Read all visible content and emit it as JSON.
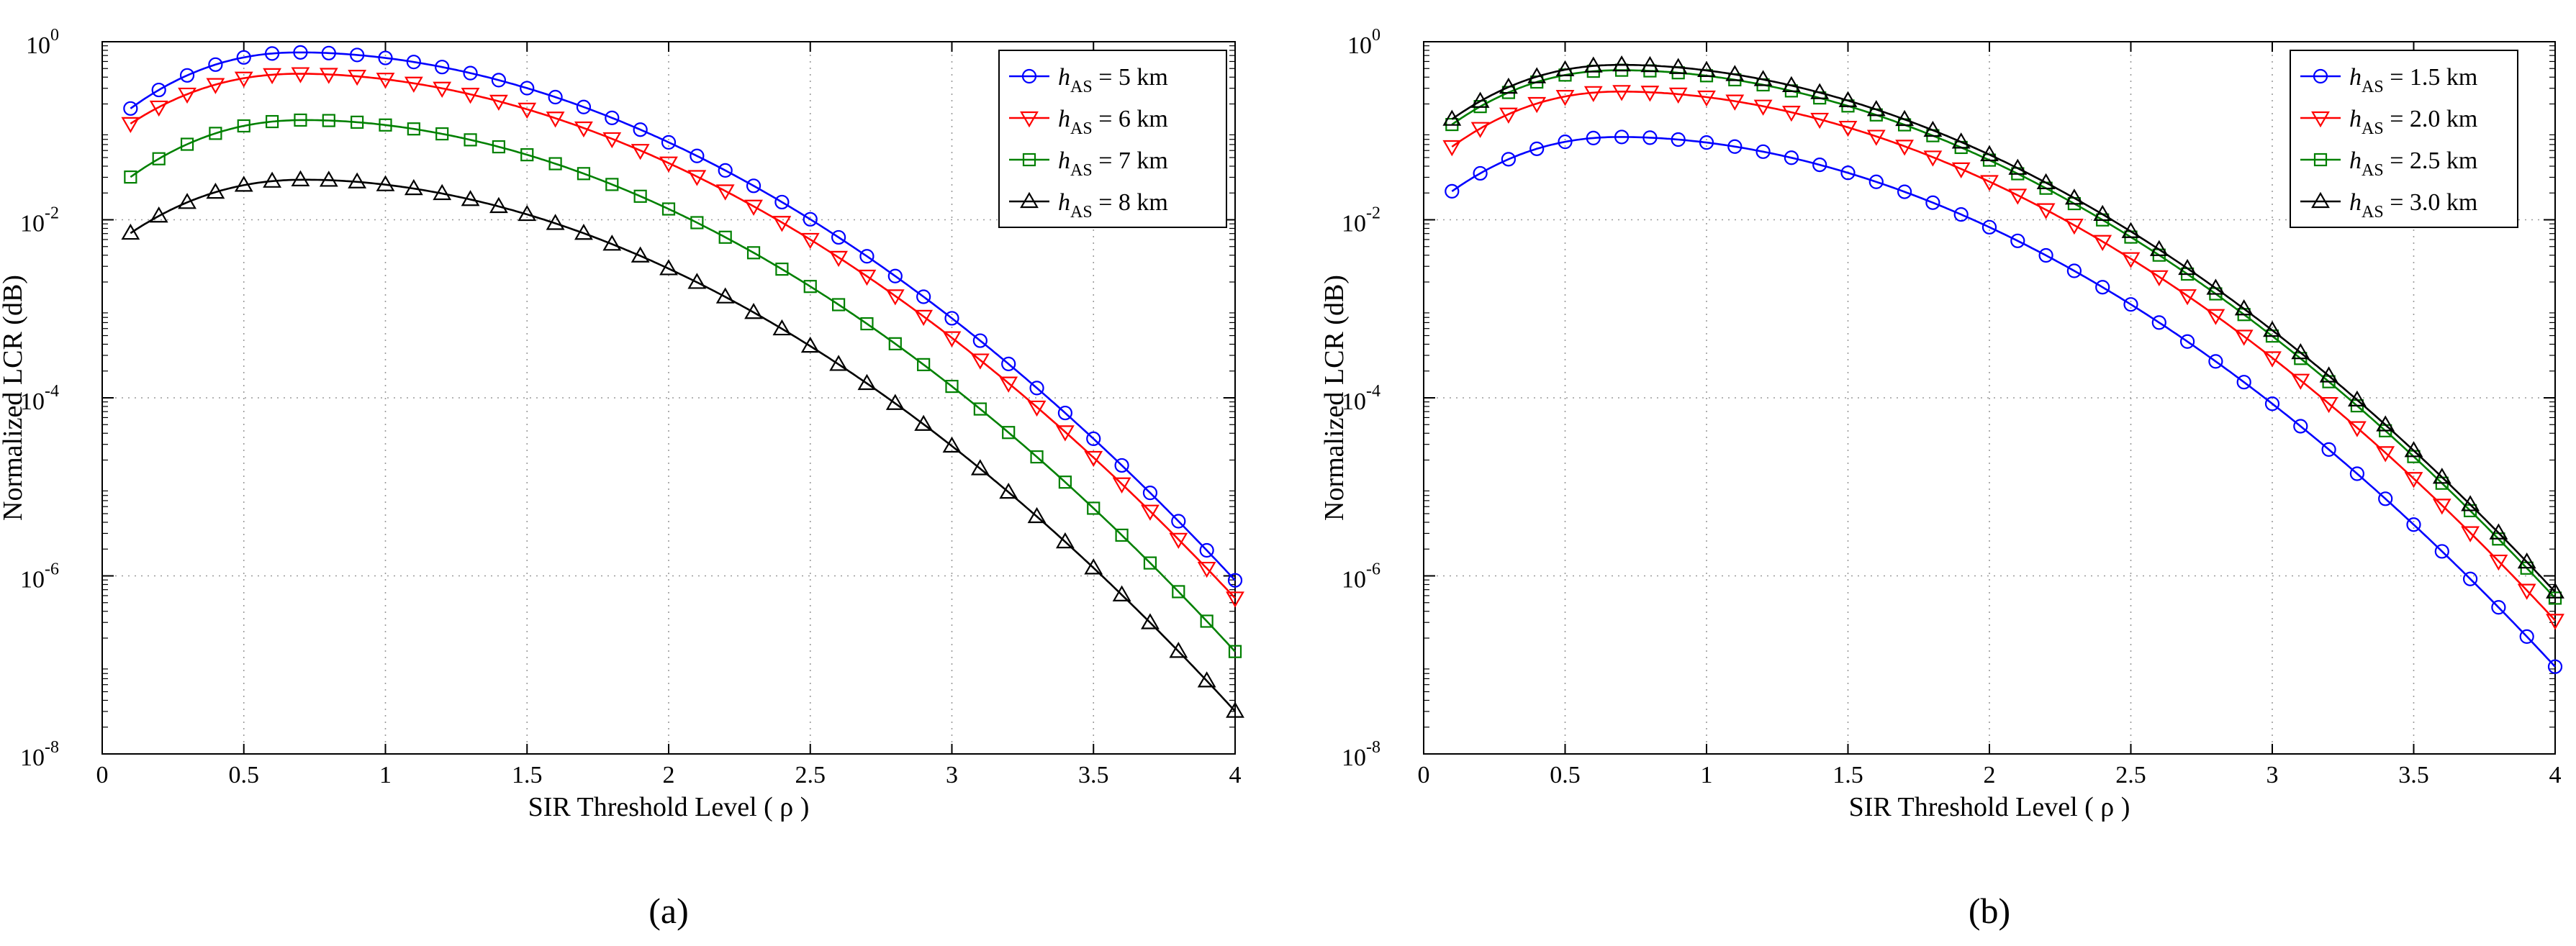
{
  "chart_data": [
    {
      "type": "line",
      "panel_label": "(a)",
      "xlabel": "SIR Threshold Level ( ρ )",
      "ylabel": "Normalized LCR (dB)",
      "xlim": [
        0,
        4
      ],
      "ylim_exponent": [
        -8,
        0
      ],
      "yscale": "log",
      "grid": true,
      "legend_position": "top-right",
      "x_ticks": [
        0,
        0.5,
        1,
        1.5,
        2,
        2.5,
        3,
        3.5,
        4
      ],
      "x_tick_labels": [
        "0",
        "0.5",
        "1",
        "1.5",
        "2",
        "2.5",
        "3",
        "3.5",
        "4"
      ],
      "y_ticks": [
        -8,
        -6,
        -4,
        -2,
        0
      ],
      "y_tick_base": "10",
      "y_tick_exponents": [
        "-8",
        "-6",
        "-4",
        "-2",
        "0"
      ],
      "series": [
        {
          "name": "h_AS = 5 km",
          "legend_var": "h",
          "legend_sub": "AS",
          "legend_rest": " = 5 km",
          "color": "#0000ff",
          "marker": "circle",
          "log_peak": -0.12,
          "log_end": -6.05,
          "peak_x": 0.7,
          "log_start": -0.75
        },
        {
          "name": "h_AS = 6 km",
          "legend_var": "h",
          "legend_sub": "AS",
          "legend_rest": " = 6 km",
          "color": "#ff0000",
          "marker": "triangle-down",
          "log_peak": -0.36,
          "log_end": -6.25,
          "peak_x": 0.7,
          "log_start": -0.92
        },
        {
          "name": "h_AS = 7 km",
          "legend_var": "h",
          "legend_sub": "AS",
          "legend_rest": " = 7 km",
          "color": "#008000",
          "marker": "square",
          "log_peak": -0.88,
          "log_end": -6.85,
          "peak_x": 0.72,
          "log_start": -1.52
        },
        {
          "name": "h_AS = 8 km",
          "legend_var": "h",
          "legend_sub": "AS",
          "legend_rest": " = 8 km",
          "color": "#000000",
          "marker": "triangle-up",
          "log_peak": -1.55,
          "log_end": -7.52,
          "peak_x": 0.72,
          "log_start": -2.15
        }
      ]
    },
    {
      "type": "line",
      "panel_label": "(b)",
      "xlabel": "SIR Threshold Level ( ρ )",
      "ylabel": "Normalized LCR (dB)",
      "xlim": [
        0,
        4
      ],
      "ylim_exponent": [
        -8,
        0
      ],
      "yscale": "log",
      "grid": true,
      "legend_position": "top-right",
      "x_ticks": [
        0,
        0.5,
        1,
        1.5,
        2,
        2.5,
        3,
        3.5,
        4
      ],
      "x_tick_labels": [
        "0",
        "0.5",
        "1",
        "1.5",
        "2",
        "2.5",
        "3",
        "3.5",
        "4"
      ],
      "y_ticks": [
        -8,
        -6,
        -4,
        -2,
        0
      ],
      "y_tick_base": "10",
      "y_tick_exponents": [
        "-8",
        "-6",
        "-4",
        "-2",
        "0"
      ],
      "series": [
        {
          "name": "h_AS = 1.5 km",
          "legend_var": "h",
          "legend_sub": "AS",
          "legend_rest": " = 1.5 km",
          "color": "#0000ff",
          "marker": "circle",
          "log_peak": -1.07,
          "log_end": -7.02,
          "peak_x": 0.7,
          "log_start": -1.68
        },
        {
          "name": "h_AS = 2.0 km",
          "legend_var": "h",
          "legend_sub": "AS",
          "legend_rest": " = 2.0 km",
          "color": "#ff0000",
          "marker": "triangle-down",
          "log_peak": -0.56,
          "log_end": -6.5,
          "peak_x": 0.7,
          "log_start": -1.18
        },
        {
          "name": "h_AS = 2.5 km",
          "legend_var": "h",
          "legend_sub": "AS",
          "legend_rest": " = 2.5 km",
          "color": "#008000",
          "marker": "square",
          "log_peak": -0.32,
          "log_end": -6.25,
          "peak_x": 0.7,
          "log_start": -0.93
        },
        {
          "name": "h_AS = 3.0 km",
          "legend_var": "h",
          "legend_sub": "AS",
          "legend_rest": " = 3.0 km",
          "color": "#000000",
          "marker": "triangle-up",
          "log_peak": -0.26,
          "log_end": -6.18,
          "peak_x": 0.7,
          "log_start": -0.87
        }
      ]
    }
  ]
}
